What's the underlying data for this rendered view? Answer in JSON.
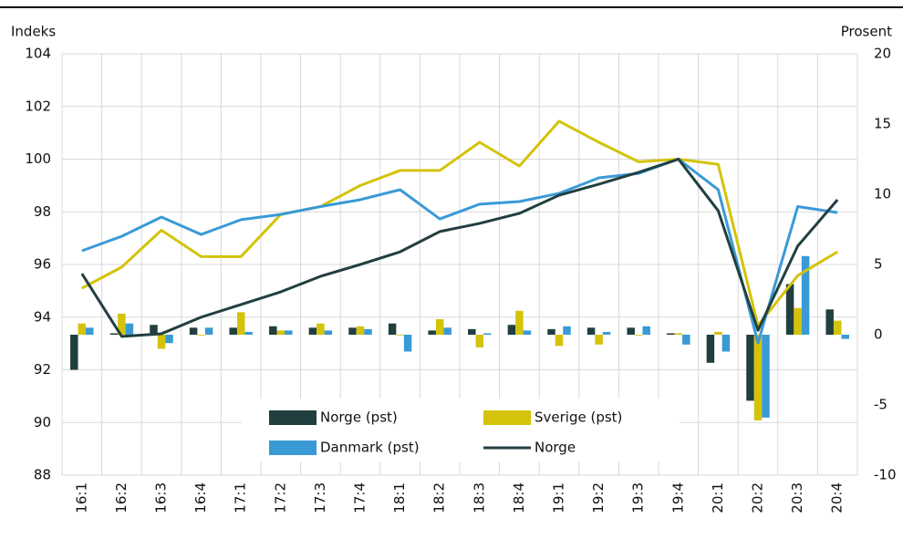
{
  "chart_data": {
    "type": "bar",
    "y_label": "Indeks",
    "y2_label": "Prosent",
    "categories": [
      "16:1",
      "16:2",
      "16:3",
      "16:4",
      "17:1",
      "17:2",
      "17:3",
      "17:4",
      "18:1",
      "18:2",
      "18:3",
      "18:4",
      "19:1",
      "19:2",
      "19:3",
      "19:4",
      "20:1",
      "20:2",
      "20:3",
      "20:4"
    ],
    "ylim": [
      88,
      104
    ],
    "yticks": [
      88,
      90,
      92,
      94,
      96,
      98,
      100,
      102,
      104
    ],
    "y2lim": [
      -10,
      20
    ],
    "y2ticks": [
      -10,
      -5,
      0,
      5,
      10,
      15,
      20
    ],
    "grid": true,
    "series": [
      {
        "name": "Norge (pst)",
        "type": "bar",
        "axis": "y2",
        "color": "#223f40",
        "values": [
          -2.5,
          0.1,
          0.7,
          0.5,
          0.5,
          0.6,
          0.5,
          0.5,
          0.8,
          0.3,
          0.4,
          0.7,
          0.4,
          0.5,
          0.5,
          0.1,
          -2.0,
          -4.7,
          3.6,
          1.8
        ]
      },
      {
        "name": "Sverige (pst)",
        "type": "bar",
        "axis": "y2",
        "color": "#d4c30a",
        "values": [
          0.8,
          1.5,
          -1.0,
          0.0,
          1.6,
          0.3,
          0.8,
          0.6,
          0.0,
          1.1,
          -0.9,
          1.7,
          -0.8,
          -0.7,
          0.0,
          0.1,
          0.2,
          -6.1,
          1.9,
          1.0
        ]
      },
      {
        "name": "Danmark (pst)",
        "type": "bar",
        "axis": "y2",
        "color": "#3a9ad6",
        "values": [
          0.5,
          0.8,
          -0.6,
          0.5,
          0.2,
          0.3,
          0.3,
          0.4,
          -1.2,
          0.5,
          0.1,
          0.3,
          0.6,
          0.2,
          0.6,
          -0.7,
          -1.2,
          -5.9,
          5.6,
          -0.3
        ]
      },
      {
        "type": "line",
        "color": "#d4c30a",
        "values": [
          95.1,
          95.9,
          97.3,
          96.3,
          96.3,
          97.9,
          98.2,
          99.0,
          99.57,
          99.57,
          100.64,
          99.74,
          101.44,
          100.64,
          99.9,
          100.0,
          99.8,
          93.68,
          95.58,
          96.48
        ]
      },
      {
        "type": "line",
        "color": "#3a9ad6",
        "values": [
          96.52,
          97.07,
          97.8,
          97.14,
          97.7,
          97.9,
          98.2,
          98.46,
          98.84,
          97.73,
          98.29,
          98.39,
          98.7,
          99.29,
          99.46,
          100.0,
          98.84,
          93.02,
          98.2,
          97.97
        ]
      },
      {
        "name": "Norge",
        "type": "line",
        "color": "#223f40",
        "values": [
          95.65,
          93.27,
          93.37,
          94.0,
          94.48,
          94.96,
          95.55,
          96.0,
          96.48,
          97.25,
          97.56,
          97.94,
          98.63,
          99.05,
          99.5,
          100.0,
          98.04,
          93.5,
          96.7,
          98.46
        ]
      }
    ]
  }
}
